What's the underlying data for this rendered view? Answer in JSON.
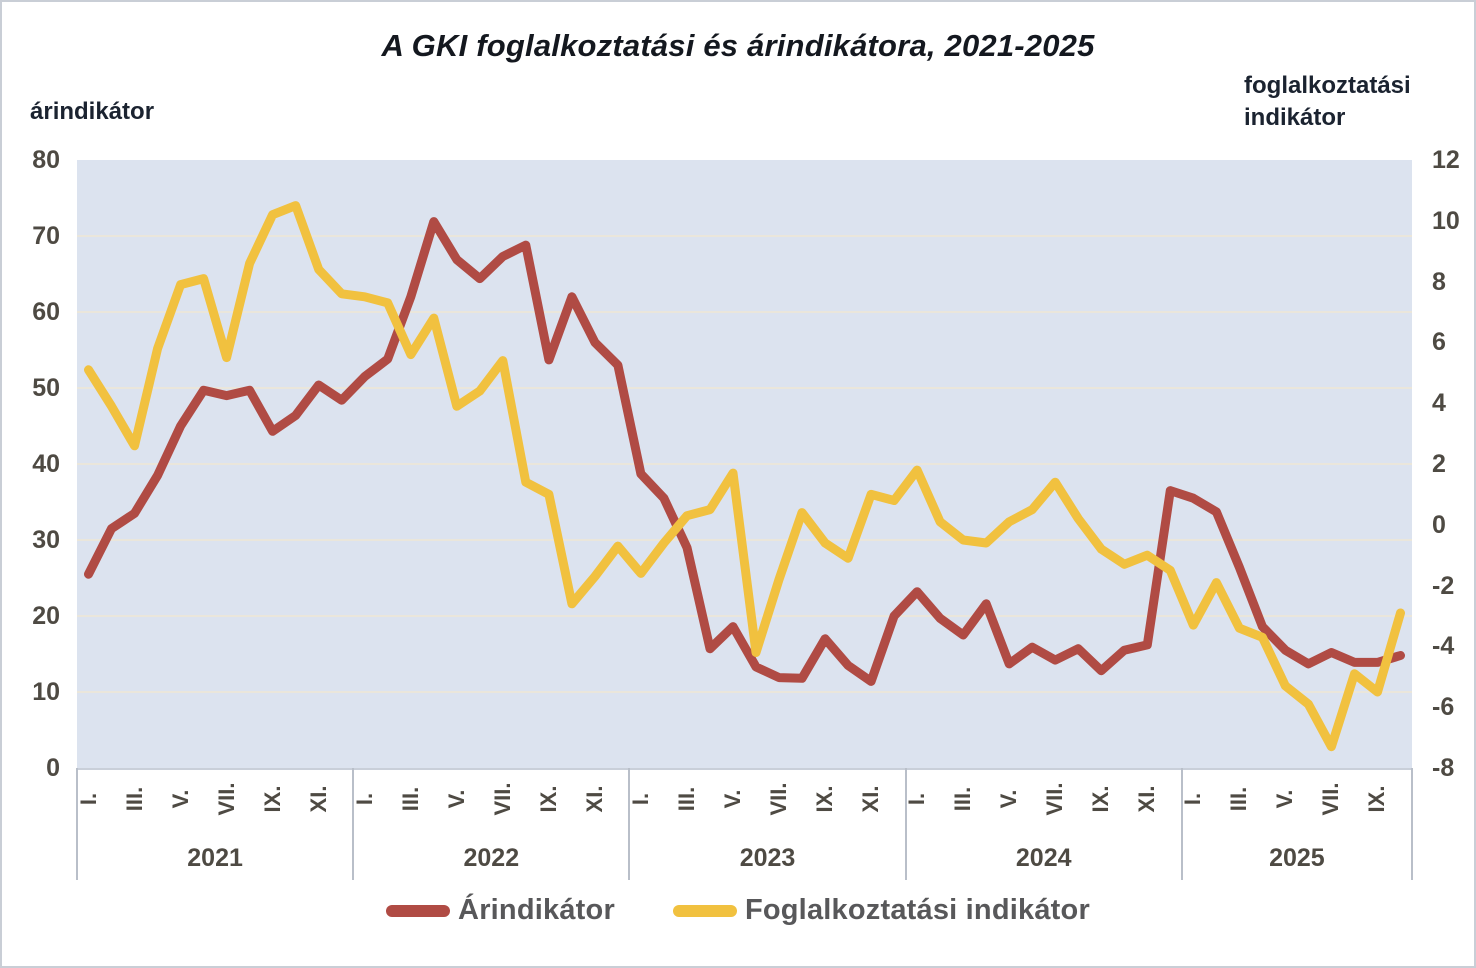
{
  "title": "A GKI foglalkoztatási és árindikátora, 2021-2025",
  "left_axis": {
    "label": "árindikátor",
    "ticks": [
      80,
      70,
      60,
      50,
      40,
      30,
      20,
      10,
      0
    ]
  },
  "right_axis": {
    "label_line1": "foglalkoztatási",
    "label_line2": "indikátor",
    "ticks": [
      12,
      10,
      8,
      6,
      4,
      2,
      0,
      -2,
      -4,
      -6,
      -8
    ]
  },
  "legend": {
    "items": [
      {
        "label": "Árindikátor",
        "color": "#b04b44"
      },
      {
        "label": "Foglalkoztatási indikátor",
        "color": "#f1c13f"
      }
    ]
  },
  "chart_data": {
    "type": "line",
    "title": "A GKI foglalkoztatási és árindikátora, 2021-2025",
    "grid": true,
    "plot_background": "#dce3ef",
    "gridline_color": "#eae6db",
    "left_ylim": [
      0,
      80
    ],
    "right_ylim": [
      -8,
      12
    ],
    "x_years": [
      {
        "label": "2021",
        "month_ticks": [
          "I.",
          "III.",
          "V.",
          "VII.",
          "IX.",
          "XI."
        ],
        "points": 12
      },
      {
        "label": "2022",
        "month_ticks": [
          "I.",
          "III.",
          "V.",
          "VII.",
          "IX.",
          "XI."
        ],
        "points": 12
      },
      {
        "label": "2023",
        "month_ticks": [
          "I.",
          "III.",
          "V.",
          "VII.",
          "IX.",
          "XI."
        ],
        "points": 12
      },
      {
        "label": "2024",
        "month_ticks": [
          "I.",
          "III.",
          "V.",
          "VII.",
          "IX.",
          "XI."
        ],
        "points": 12
      },
      {
        "label": "2025",
        "month_ticks": [
          "I.",
          "III.",
          "V.",
          "VII.",
          "IX."
        ],
        "points": 10
      }
    ],
    "series": [
      {
        "name": "Árindikátor",
        "axis": "left",
        "color": "#b04b44",
        "values": [
          25.5,
          31.5,
          33.5,
          38.5,
          45.0,
          49.7,
          49.0,
          49.7,
          44.3,
          46.4,
          50.4,
          48.4,
          51.5,
          53.8,
          62.0,
          71.9,
          66.9,
          64.4,
          67.3,
          68.8,
          53.7,
          62.0,
          56.0,
          53.0,
          38.7,
          35.5,
          29.0,
          15.7,
          18.6,
          13.3,
          11.9,
          11.8,
          17.0,
          13.5,
          11.4,
          20.0,
          23.2,
          19.7,
          17.5,
          21.6,
          13.7,
          15.9,
          14.2,
          15.7,
          12.8,
          15.5,
          16.2,
          36.5,
          35.5,
          33.7,
          26.4,
          18.6,
          15.5,
          13.7,
          15.2,
          13.9,
          13.9,
          14.8
        ]
      },
      {
        "name": "Foglalkoztatási indikátor",
        "axis": "right",
        "color": "#f1c13f",
        "values": [
          5.1,
          3.9,
          2.6,
          5.8,
          7.9,
          8.1,
          5.5,
          8.6,
          10.2,
          10.5,
          8.4,
          7.6,
          7.5,
          7.3,
          5.6,
          6.8,
          3.9,
          4.4,
          5.4,
          1.4,
          1.0,
          -2.6,
          -1.7,
          -0.7,
          -1.6,
          -0.6,
          0.3,
          0.5,
          1.7,
          -4.2,
          -1.8,
          0.4,
          -0.6,
          -1.1,
          1.0,
          0.8,
          1.8,
          0.1,
          -0.5,
          -0.6,
          0.1,
          0.5,
          1.4,
          0.2,
          -0.8,
          -1.3,
          -1.0,
          -1.5,
          -3.3,
          -1.9,
          -3.4,
          -3.7,
          -5.3,
          -5.9,
          -7.3,
          -4.9,
          -5.5,
          -2.9
        ]
      }
    ]
  }
}
